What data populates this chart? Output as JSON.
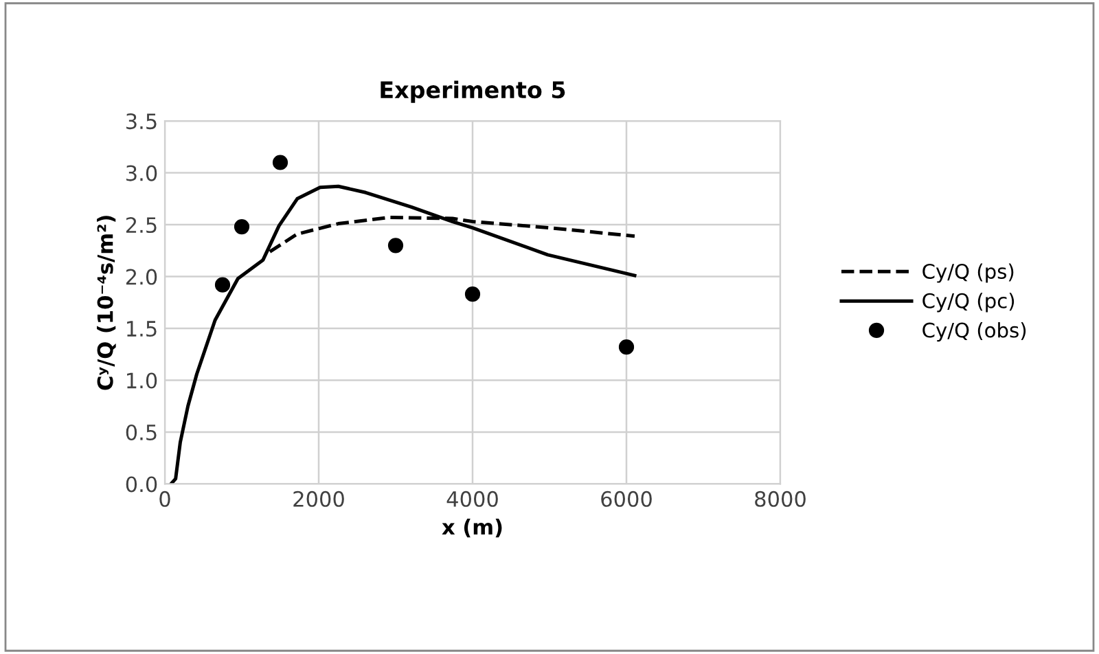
{
  "chart_data": {
    "type": "line",
    "title": "Experimento 5",
    "xlabel": "x (m)",
    "ylabel": "Cʸ/Q (10⁻⁴s/m²)",
    "xlim": [
      0,
      8000
    ],
    "xticks": [
      0,
      2000,
      4000,
      6000,
      8000
    ],
    "ylim": [
      0,
      3.5
    ],
    "yticks": [
      {
        "value": 0,
        "label": "0.0"
      },
      {
        "value": 0.5,
        "label": "0.5"
      },
      {
        "value": 1,
        "label": "1.0"
      },
      {
        "value": 1.5,
        "label": "1.5"
      },
      {
        "value": 2,
        "label": "2.0"
      },
      {
        "value": 2.5,
        "label": "2.5"
      },
      {
        "value": 3,
        "label": "3.0"
      },
      {
        "value": 3.5,
        "label": "3.5"
      }
    ],
    "grid": true,
    "legend": "right",
    "series": [
      {
        "name": "Cy/Q (ps)",
        "color": "#000000",
        "line_style": "dashed",
        "marker": "none",
        "x": [
          1365,
          1721,
          2255,
          2908,
          3739,
          4000,
          5000,
          6107
        ],
        "values": [
          2.24,
          2.41,
          2.51,
          2.57,
          2.56,
          2.53,
          2.47,
          2.39
        ]
      },
      {
        "name": "Cy/Q (pc)",
        "color": "#000000",
        "line_style": "solid",
        "marker": "none",
        "x": [
          80,
          140,
          200,
          300,
          415,
          653,
          950,
          1276,
          1484,
          1721,
          2018,
          2255,
          2611,
          3205,
          3739,
          4000,
          4976,
          6107
        ],
        "values": [
          0,
          0.05,
          0.4,
          0.75,
          1.06,
          1.58,
          1.98,
          2.16,
          2.49,
          2.75,
          2.86,
          2.87,
          2.81,
          2.67,
          2.53,
          2.47,
          2.21,
          2.01
        ]
      },
      {
        "name": "Cy/Q (obs)",
        "type": "scatter",
        "color": "#000000",
        "marker": "circle",
        "x": [
          750,
          1000,
          1500,
          3000,
          4000,
          6000
        ],
        "values": [
          1.92,
          2.48,
          3.1,
          2.3,
          1.83,
          1.32
        ]
      }
    ]
  }
}
